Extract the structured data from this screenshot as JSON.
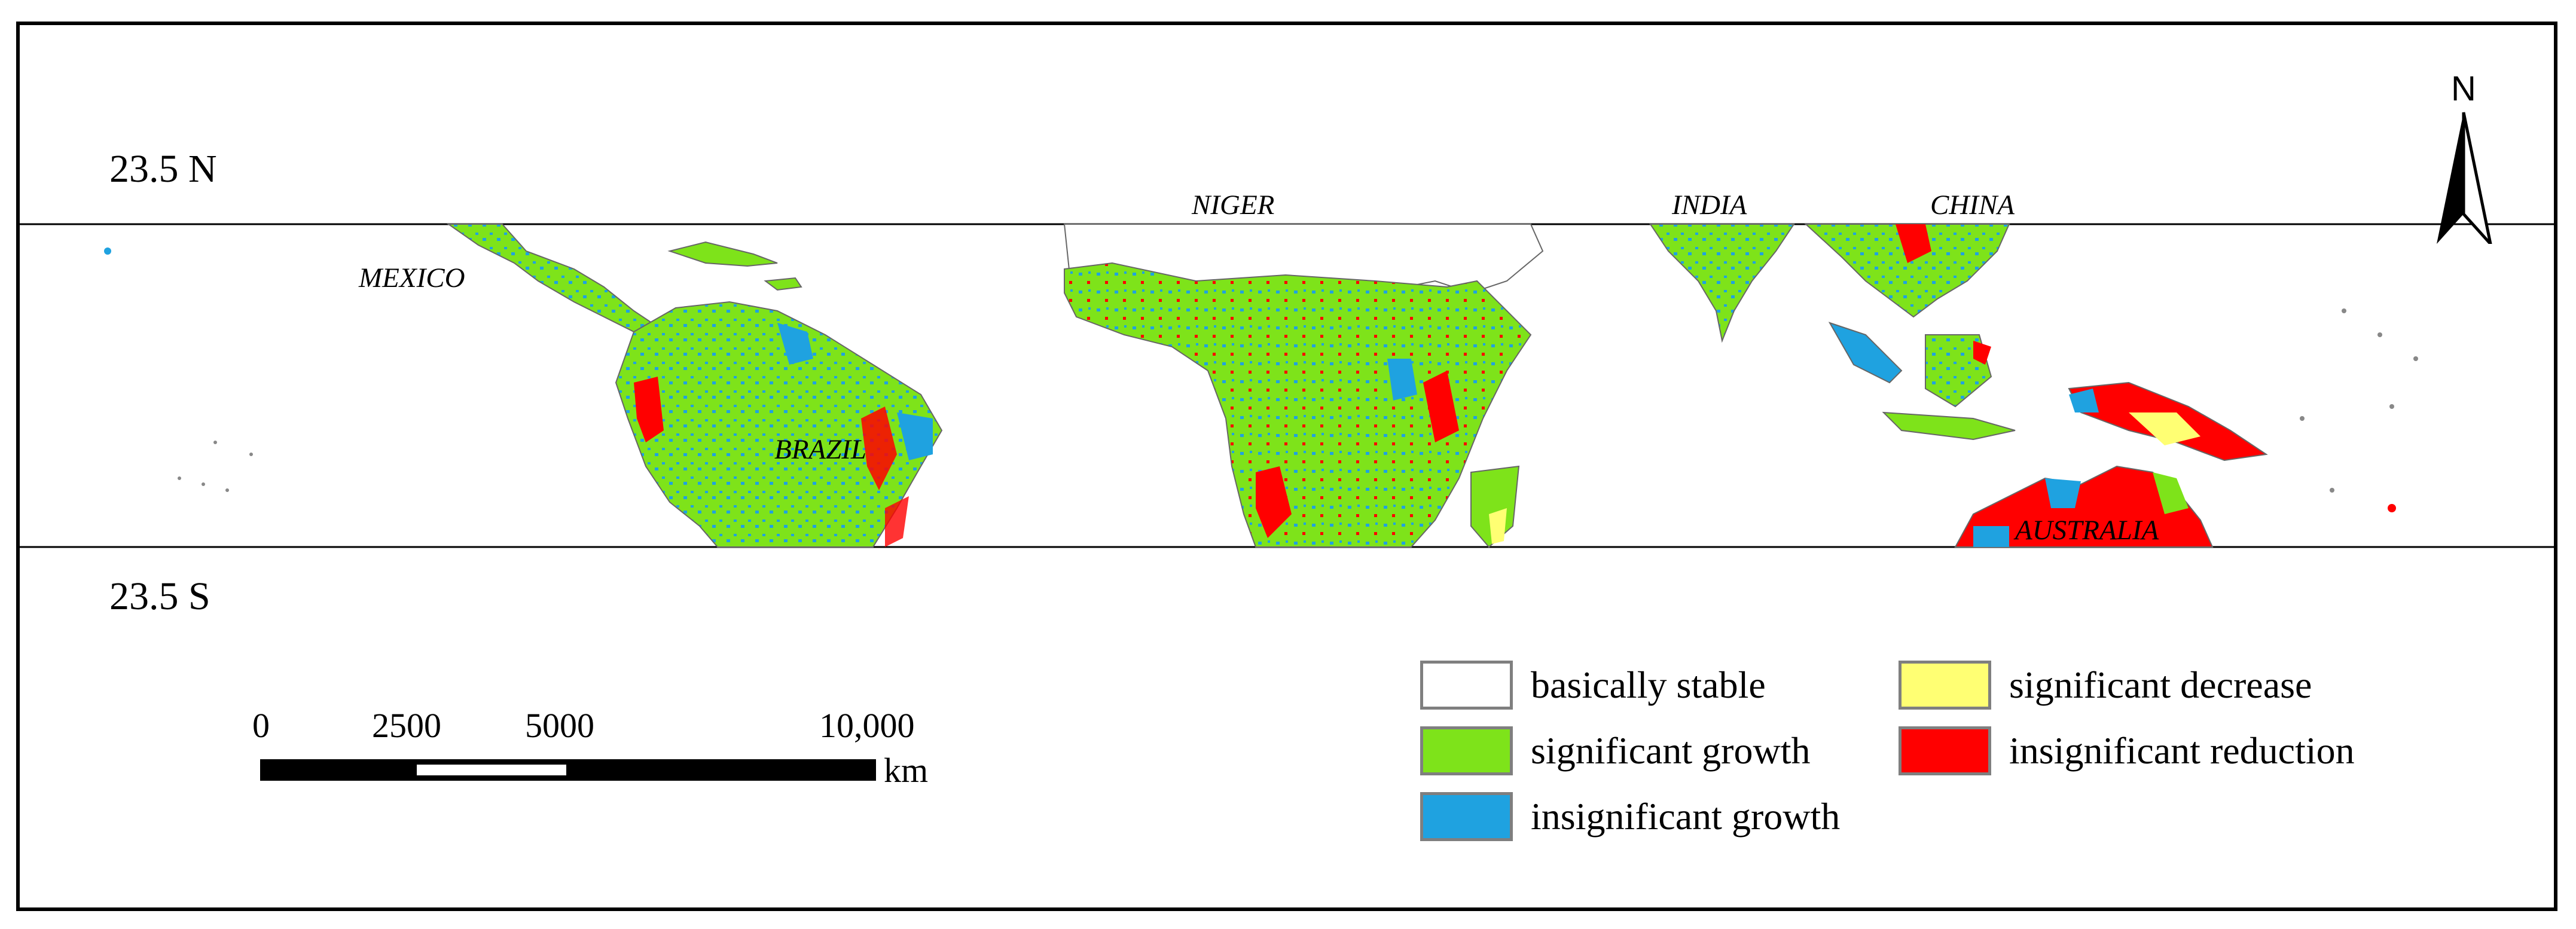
{
  "latitudes": {
    "north": "23.5 N",
    "south": "23.5 S"
  },
  "north_arrow": {
    "label": "N"
  },
  "countries": [
    {
      "name": "MEXICO"
    },
    {
      "name": "BRAZIL"
    },
    {
      "name": "NIGER"
    },
    {
      "name": "INDIA"
    },
    {
      "name": "CHINA"
    },
    {
      "name": "AUSTRALIA"
    }
  ],
  "legend": [
    {
      "label": "basically stable",
      "color": "#ffffff"
    },
    {
      "label": "significant growth",
      "color": "#7ee31a"
    },
    {
      "label": "insignificant growth",
      "color": "#1fa2e0"
    },
    {
      "label": "significant decrease",
      "color": "#ffff73"
    },
    {
      "label": "insignificant reduction",
      "color": "#ff0000"
    }
  ],
  "scale_bar": {
    "ticks": [
      "0",
      "2500",
      "5000",
      "10,000"
    ],
    "unit": "km"
  }
}
